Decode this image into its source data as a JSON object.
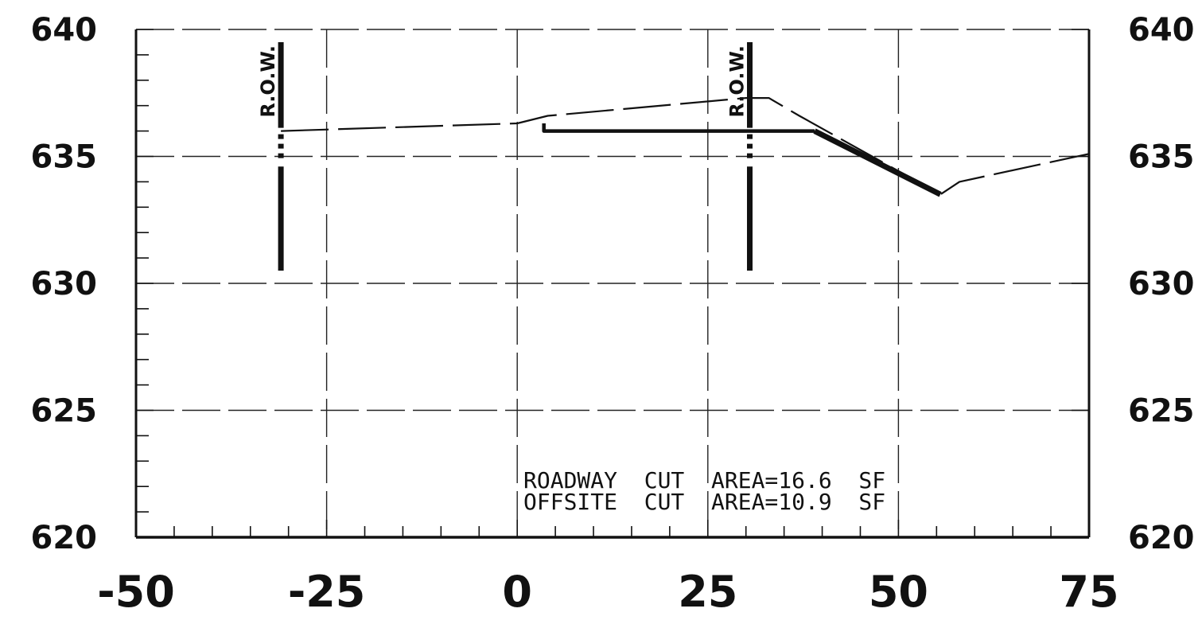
{
  "chart_data": {
    "type": "line",
    "title": "",
    "xlabel": "",
    "ylabel": "",
    "xlim": [
      -50,
      75
    ],
    "ylim": [
      620,
      640
    ],
    "x_ticks": [
      -50,
      -25,
      0,
      25,
      50,
      75
    ],
    "x_tick_labels": [
      "-50",
      "-25",
      "0",
      "25",
      "50",
      "75"
    ],
    "y_ticks": [
      620,
      625,
      630,
      635,
      640
    ],
    "y_tick_labels_left": [
      "620",
      "625",
      "630",
      "635",
      "640"
    ],
    "y_tick_labels_right": [
      "620",
      "625",
      "630",
      "635",
      "640"
    ],
    "grid": true,
    "series": [
      {
        "style": "dashed",
        "x": [
          -31,
          0,
          4,
          30,
          33,
          37,
          55.5,
          58,
          75
        ],
        "y": [
          636.0,
          636.3,
          636.6,
          637.3,
          637.3,
          636.6,
          633.5,
          634.0,
          635.1
        ]
      },
      {
        "style": "solid",
        "x": [
          3.5,
          3.5,
          39
        ],
        "y": [
          636.3,
          636.0,
          636.0
        ]
      },
      {
        "style": "solid-thick",
        "x": [
          39,
          55.5
        ],
        "y": [
          636.0,
          633.5
        ]
      }
    ],
    "row_lines": [
      {
        "label": "R.O.W.",
        "x": -31,
        "y_top": 639.5,
        "y_bottom": 630.5
      },
      {
        "label": "R.O.W.",
        "x": 30.5,
        "y_top": 639.5,
        "y_bottom": 630.5
      }
    ],
    "annotations": [
      "ROADWAY  CUT  AREA=16.6  SF",
      "OFFSITE  CUT  AREA=10.9  SF"
    ]
  }
}
